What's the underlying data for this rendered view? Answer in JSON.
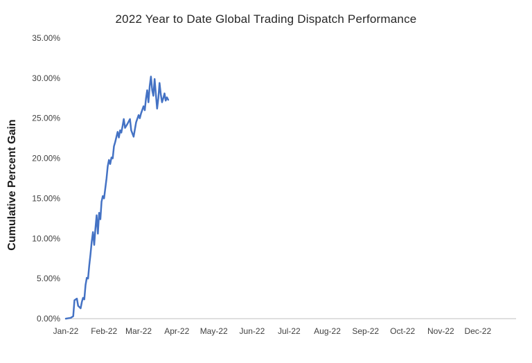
{
  "chart_data": {
    "type": "line",
    "title": "2022 Year to Date Global Trading Dispatch Performance",
    "xlabel": "",
    "ylabel": "Cumulative Percent Gain",
    "ylim": [
      0,
      35
    ],
    "y_tick_step": 5,
    "y_tick_format": "0.00%",
    "grid": false,
    "legend_position": "none",
    "line_color": "#4472C4",
    "axis_line_color": "#BFBFBF",
    "x_tick_labels": [
      "Jan-22",
      "Feb-22",
      "Mar-22",
      "Apr-22",
      "May-22",
      "Jun-22",
      "Jul-22",
      "Aug-22",
      "Sep-22",
      "Oct-22",
      "Nov-22",
      "Dec-22"
    ],
    "x_tick_days": [
      0,
      31,
      59,
      90,
      120,
      151,
      181,
      212,
      243,
      273,
      304,
      334
    ],
    "x_range_days": [
      0,
      365
    ],
    "series": [
      {
        "name": "Cumulative Percent Gain",
        "points": [
          [
            0,
            0.0
          ],
          [
            4,
            0.1
          ],
          [
            6,
            0.3
          ],
          [
            7,
            2.3
          ],
          [
            9,
            2.5
          ],
          [
            10,
            1.6
          ],
          [
            12,
            1.3
          ],
          [
            13,
            2.1
          ],
          [
            14,
            2.6
          ],
          [
            15,
            2.4
          ],
          [
            16,
            4.2
          ],
          [
            17,
            5.1
          ],
          [
            18,
            5.0
          ],
          [
            19,
            6.6
          ],
          [
            20,
            8.0
          ],
          [
            21,
            9.6
          ],
          [
            22,
            10.8
          ],
          [
            23,
            9.2
          ],
          [
            24,
            11.2
          ],
          [
            25,
            12.9
          ],
          [
            26,
            10.6
          ],
          [
            27,
            13.2
          ],
          [
            28,
            12.4
          ],
          [
            29,
            14.6
          ],
          [
            30,
            15.3
          ],
          [
            31,
            15.0
          ],
          [
            33,
            17.5
          ],
          [
            34,
            19.0
          ],
          [
            35,
            19.8
          ],
          [
            36,
            19.3
          ],
          [
            37,
            20.1
          ],
          [
            38,
            20.0
          ],
          [
            39,
            21.5
          ],
          [
            40,
            22.0
          ],
          [
            42,
            23.3
          ],
          [
            43,
            22.6
          ],
          [
            44,
            23.5
          ],
          [
            45,
            23.2
          ],
          [
            46,
            24.0
          ],
          [
            47,
            24.9
          ],
          [
            48,
            23.8
          ],
          [
            50,
            24.3
          ],
          [
            52,
            24.9
          ],
          [
            53,
            23.5
          ],
          [
            55,
            22.7
          ],
          [
            57,
            24.5
          ],
          [
            59,
            25.4
          ],
          [
            60,
            25.0
          ],
          [
            61,
            25.6
          ],
          [
            63,
            26.5
          ],
          [
            64,
            26.0
          ],
          [
            65,
            27.5
          ],
          [
            66,
            28.5
          ],
          [
            67,
            27.0
          ],
          [
            68,
            29.0
          ],
          [
            69,
            30.2
          ],
          [
            70,
            28.5
          ],
          [
            71,
            27.8
          ],
          [
            72,
            29.9
          ],
          [
            73,
            28.0
          ],
          [
            74,
            26.2
          ],
          [
            75,
            27.5
          ],
          [
            76,
            29.4
          ],
          [
            77,
            28.0
          ],
          [
            78,
            27.0
          ],
          [
            79,
            27.5
          ],
          [
            80,
            28.1
          ],
          [
            81,
            27.2
          ],
          [
            82,
            27.6
          ],
          [
            83,
            27.3
          ]
        ]
      }
    ]
  }
}
